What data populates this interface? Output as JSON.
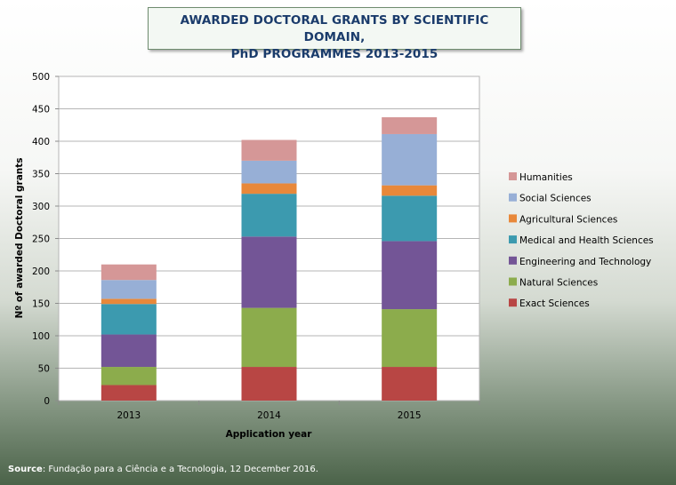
{
  "title": {
    "line1": "AWARDED DOCTORAL GRANTS BY SCIENTIFIC DOMAIN,",
    "line2": "PhD PROGRAMMES 2013-2015"
  },
  "source": {
    "label": "Source",
    "text": ": Fundação para a Ciência e a Tecnologia, 12 December 2016."
  },
  "chart_data": {
    "type": "bar",
    "stacked": true,
    "categories": [
      "2013",
      "2014",
      "2015"
    ],
    "xlabel": "Application year",
    "ylabel": "Nº of awarded Doctoral grants",
    "ylim": [
      0,
      500
    ],
    "yticks": [
      0,
      50,
      100,
      150,
      200,
      250,
      300,
      350,
      400,
      450,
      500
    ],
    "grid": true,
    "legend_position": "right",
    "series": [
      {
        "name": "Exact Sciences",
        "color": "#b84644",
        "values": [
          24,
          52,
          52
        ]
      },
      {
        "name": "Natural Sciences",
        "color": "#8cac4c",
        "values": [
          28,
          91,
          89
        ]
      },
      {
        "name": "Engineering and Technology",
        "color": "#735596",
        "values": [
          50,
          110,
          105
        ]
      },
      {
        "name": "Medical and Health Sciences",
        "color": "#3c9aaf",
        "values": [
          47,
          66,
          70
        ]
      },
      {
        "name": "Agricultural Sciences",
        "color": "#e8883a",
        "values": [
          8,
          16,
          16
        ]
      },
      {
        "name": "Social Sciences",
        "color": "#97afd6",
        "values": [
          29,
          35,
          79
        ]
      },
      {
        "name": "Humanities",
        "color": "#d59797",
        "values": [
          24,
          32,
          26
        ]
      }
    ]
  }
}
